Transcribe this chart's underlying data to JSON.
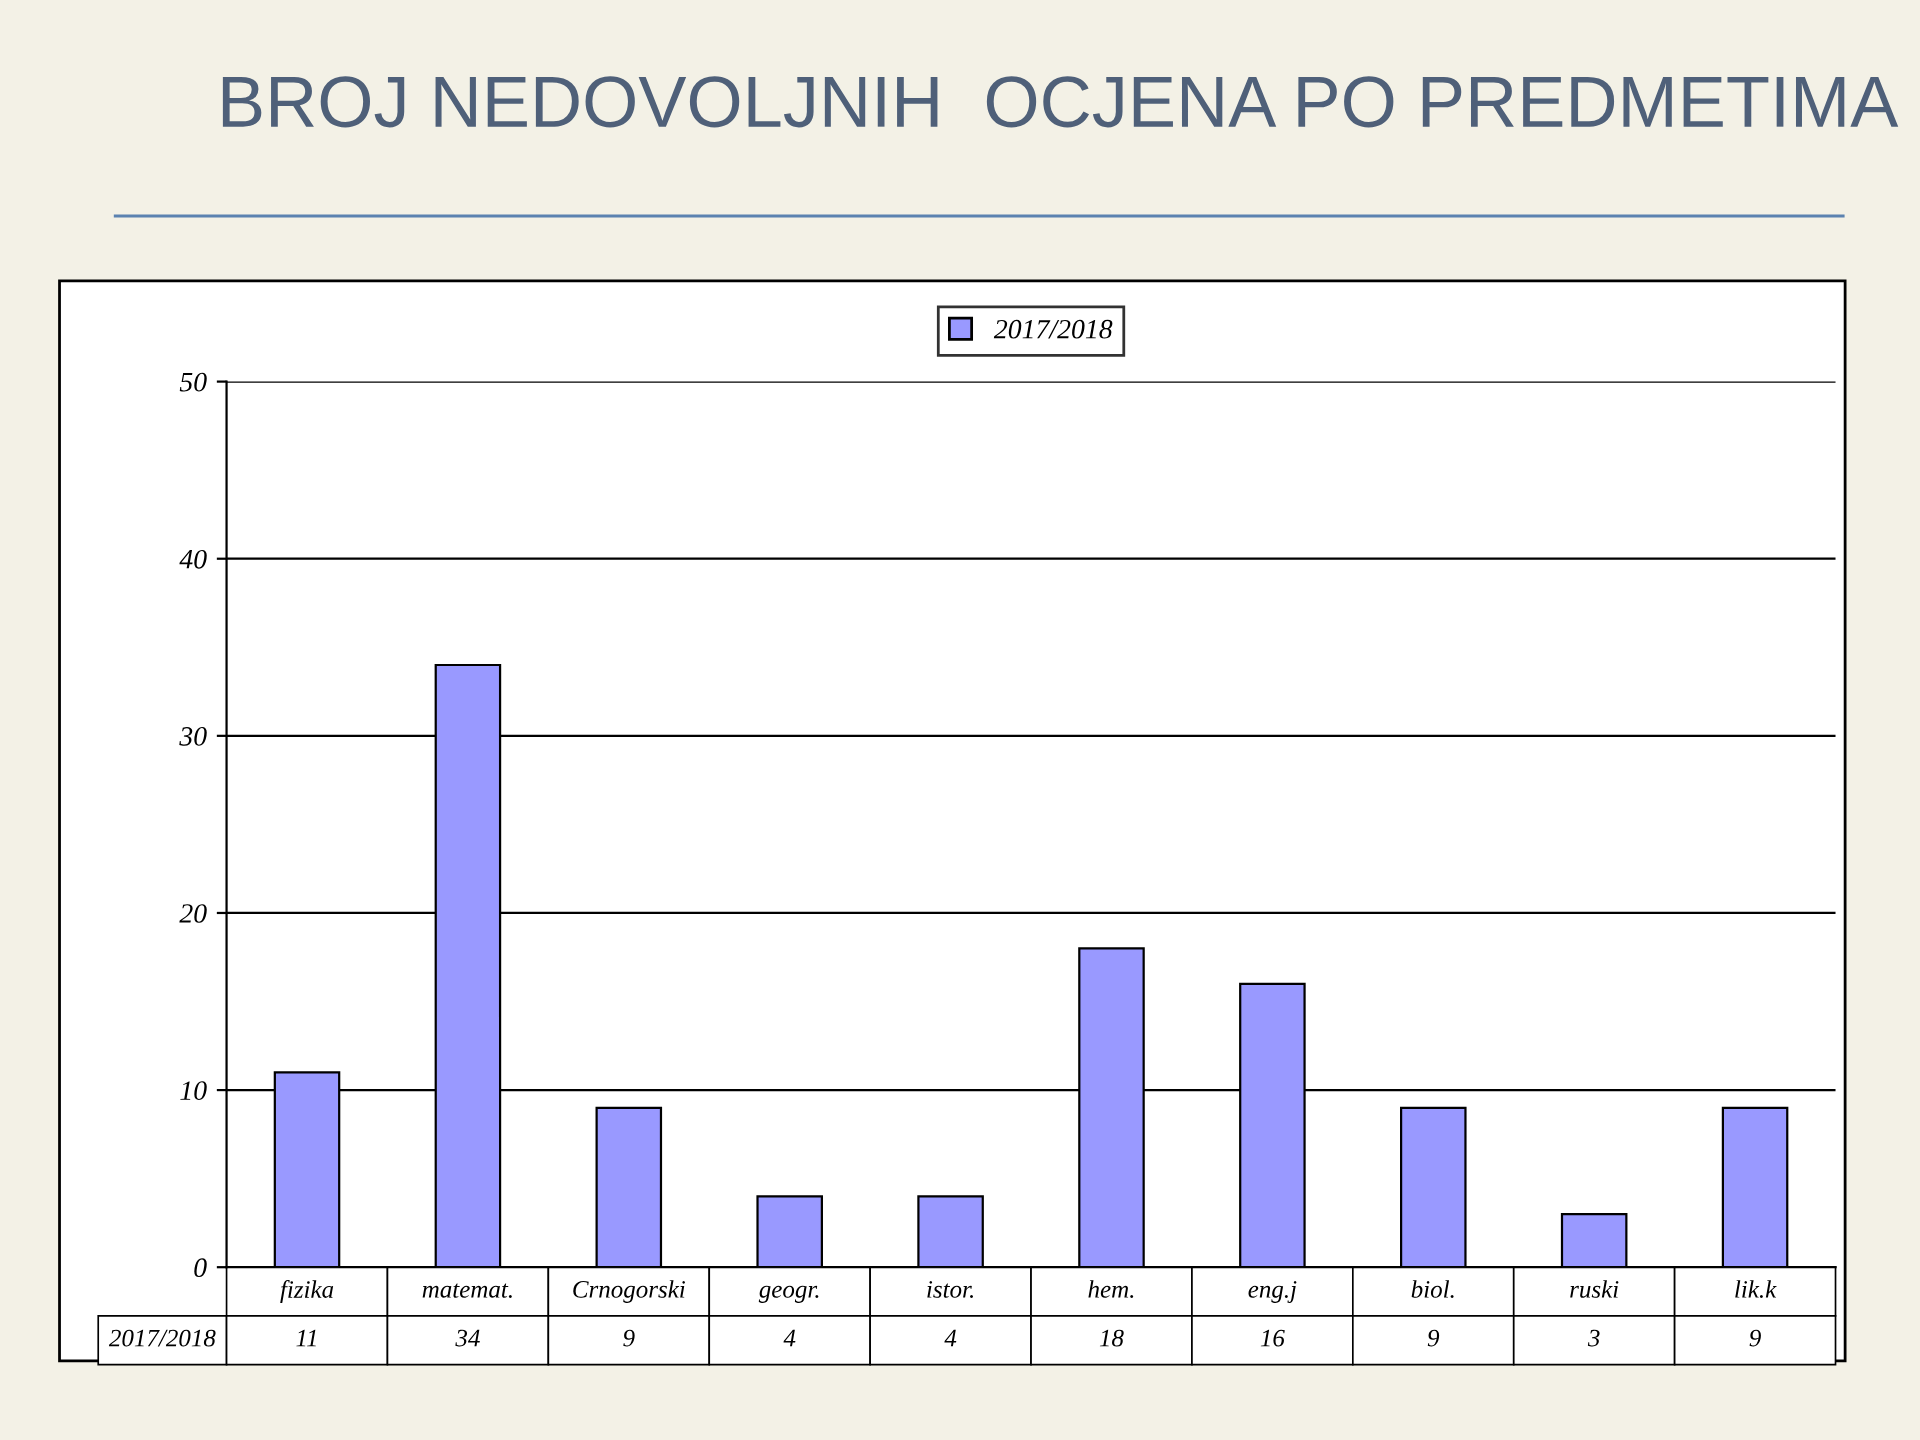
{
  "chart_data": {
    "type": "bar",
    "title": "BROJ NEDOVOLJNIH  OCJENA PO PREDMETIMA",
    "categories": [
      "fizika",
      "matemat.",
      "Crnogorski",
      "geogr.",
      "istor.",
      "hem.",
      "eng.j",
      "biol.",
      "ruski",
      "lik.k"
    ],
    "series": [
      {
        "name": "2017/2018",
        "color": "#9999ff",
        "values": [
          11,
          34,
          9,
          4,
          4,
          18,
          16,
          9,
          3,
          9
        ]
      }
    ],
    "ylim": [
      0,
      50
    ],
    "yticks": [
      0,
      10,
      20,
      30,
      40,
      50
    ],
    "grid": "y",
    "legend": "top",
    "data_labels": true
  }
}
